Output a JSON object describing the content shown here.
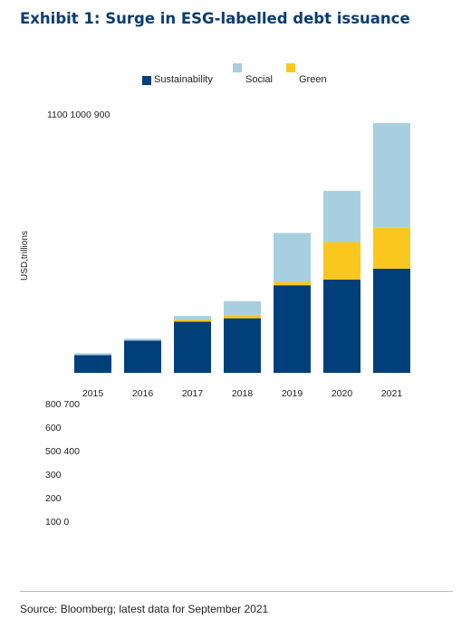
{
  "title": "Exhibit 1: Surge in ESG-labelled debt issuance",
  "source": "Source: Bloomberg; latest data for September 2021",
  "tick_labels": {
    "top_row": "1100 1000 900",
    "row_800_700": "800 700",
    "row_600": "600",
    "row_500_400": "500 400",
    "row_300": "300",
    "row_200": "200",
    "row_100_0": "100 0"
  },
  "chart_data": {
    "type": "bar",
    "stacked": true,
    "title": "Exhibit 1: Surge in ESG-labelled debt issuance",
    "ylabel": "USD,trillions",
    "ylim": [
      0,
      1100
    ],
    "categories": [
      "2015",
      "2016",
      "2017",
      "2018",
      "2019",
      "2020",
      "2021"
    ],
    "series": [
      {
        "name": "Sustainability",
        "color": "#003f7a",
        "values": [
          78,
          142,
          225,
          240,
          385,
          410,
          458
        ]
      },
      {
        "name": "Green",
        "color": "#fac71e",
        "values": [
          0,
          0,
          10,
          15,
          15,
          165,
          180
        ]
      },
      {
        "name": "Social",
        "color": "#a7cfdf",
        "values": [
          8,
          8,
          15,
          60,
          215,
          225,
          460
        ]
      }
    ],
    "legend_position": "top",
    "grid": false
  }
}
